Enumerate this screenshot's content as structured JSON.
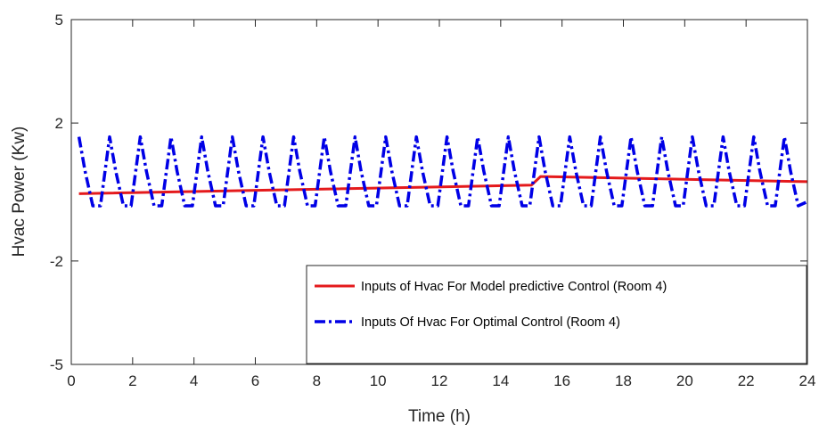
{
  "chart_data": {
    "type": "line",
    "title": "",
    "xlabel": "Time (h)",
    "ylabel": "Hvac Power (Kw)",
    "xlim": [
      0,
      24
    ],
    "ylim": [
      -5,
      5
    ],
    "x_ticks": [
      0,
      2,
      4,
      6,
      8,
      10,
      12,
      14,
      16,
      18,
      20,
      22,
      24
    ],
    "y_ticks": [
      -5,
      -2,
      2,
      5
    ],
    "grid": false,
    "legend_position": "bottom-right",
    "series": [
      {
        "name": "Inputs of Hvac For Model predictive Control (Room 4)",
        "color": "#e41a1c",
        "style": "solid",
        "x": [
          0.25,
          15.0,
          15.3,
          24
        ],
        "y": [
          -0.05,
          0.2,
          0.45,
          0.3
        ]
      },
      {
        "name": "Inputs Of Hvac For Optimal Control (Room 4)",
        "color": "#0000e6",
        "style": "dash-dot",
        "x": [
          0.25,
          0.45,
          0.7,
          0.95,
          1.25,
          1.45,
          1.7,
          1.95,
          2.25,
          2.45,
          2.7,
          2.95,
          3.25,
          3.45,
          3.7,
          3.95,
          4.25,
          4.45,
          4.7,
          4.95,
          5.25,
          5.45,
          5.7,
          5.95,
          6.25,
          6.45,
          6.7,
          6.95,
          7.25,
          7.45,
          7.7,
          7.95,
          8.25,
          8.45,
          8.7,
          8.95,
          9.25,
          9.45,
          9.7,
          9.95,
          10.25,
          10.45,
          10.7,
          10.95,
          11.25,
          11.45,
          11.7,
          11.95,
          12.25,
          12.45,
          12.7,
          12.95,
          13.25,
          13.45,
          13.7,
          13.95,
          14.25,
          14.45,
          14.7,
          14.95,
          15.25,
          15.45,
          15.7,
          15.95,
          16.25,
          16.45,
          16.7,
          16.95,
          17.25,
          17.45,
          17.7,
          17.95,
          18.25,
          18.45,
          18.7,
          18.95,
          19.25,
          19.45,
          19.7,
          19.95,
          20.25,
          20.45,
          20.7,
          20.95,
          21.25,
          21.45,
          21.7,
          21.95,
          22.25,
          22.45,
          22.7,
          22.95,
          23.25,
          23.45,
          23.7,
          23.95
        ],
        "y": [
          1.6,
          0.6,
          -0.4,
          -0.4,
          1.6,
          0.6,
          -0.4,
          -0.4,
          1.6,
          0.6,
          -0.4,
          -0.4,
          1.6,
          0.6,
          -0.4,
          -0.4,
          1.6,
          0.6,
          -0.4,
          -0.4,
          1.6,
          0.6,
          -0.4,
          -0.4,
          1.6,
          0.6,
          -0.4,
          -0.4,
          1.6,
          0.6,
          -0.4,
          -0.4,
          1.6,
          0.6,
          -0.4,
          -0.4,
          1.6,
          0.6,
          -0.4,
          -0.4,
          1.6,
          0.6,
          -0.4,
          -0.4,
          1.6,
          0.6,
          -0.4,
          -0.4,
          1.6,
          0.6,
          -0.4,
          -0.4,
          1.6,
          0.6,
          -0.4,
          -0.4,
          1.6,
          0.6,
          -0.4,
          -0.4,
          1.6,
          0.6,
          -0.4,
          -0.4,
          1.6,
          0.6,
          -0.4,
          -0.4,
          1.6,
          0.6,
          -0.4,
          -0.4,
          1.6,
          0.6,
          -0.4,
          -0.4,
          1.6,
          0.6,
          -0.4,
          -0.4,
          1.6,
          0.6,
          -0.4,
          -0.4,
          1.6,
          0.6,
          -0.4,
          -0.4,
          1.6,
          0.6,
          -0.4,
          -0.4,
          1.6,
          0.6,
          -0.4,
          -0.3
        ]
      }
    ]
  }
}
